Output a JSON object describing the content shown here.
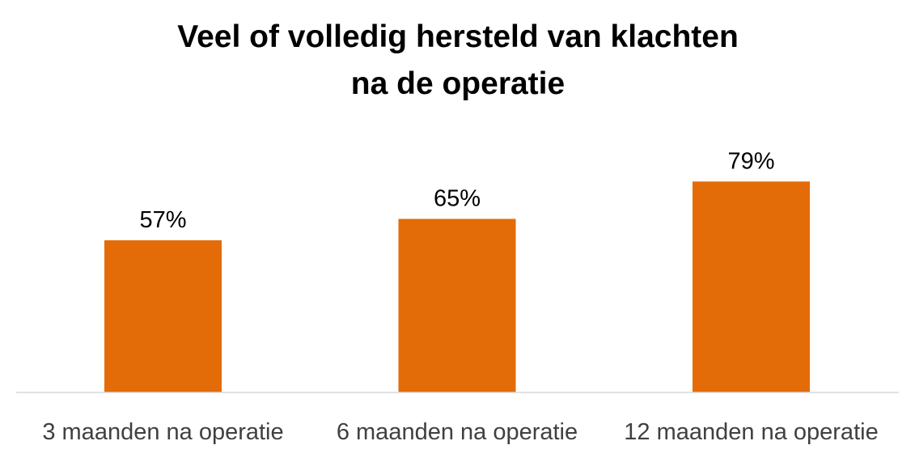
{
  "chart_data": {
    "type": "bar",
    "title_lines": [
      "Veel of volledig hersteld van klachten",
      "na de operatie"
    ],
    "categories": [
      "3 maanden na operatie",
      "6 maanden na operatie",
      "12 maanden na operatie"
    ],
    "values": [
      57,
      65,
      79
    ],
    "data_labels": [
      "57%",
      "65%",
      "79%"
    ],
    "bar_color": "#E36C09",
    "axis_color": "#D9D9D9",
    "xlabel": "",
    "ylabel": "",
    "ylim": [
      0,
      100
    ],
    "grid": false,
    "legend": false
  }
}
